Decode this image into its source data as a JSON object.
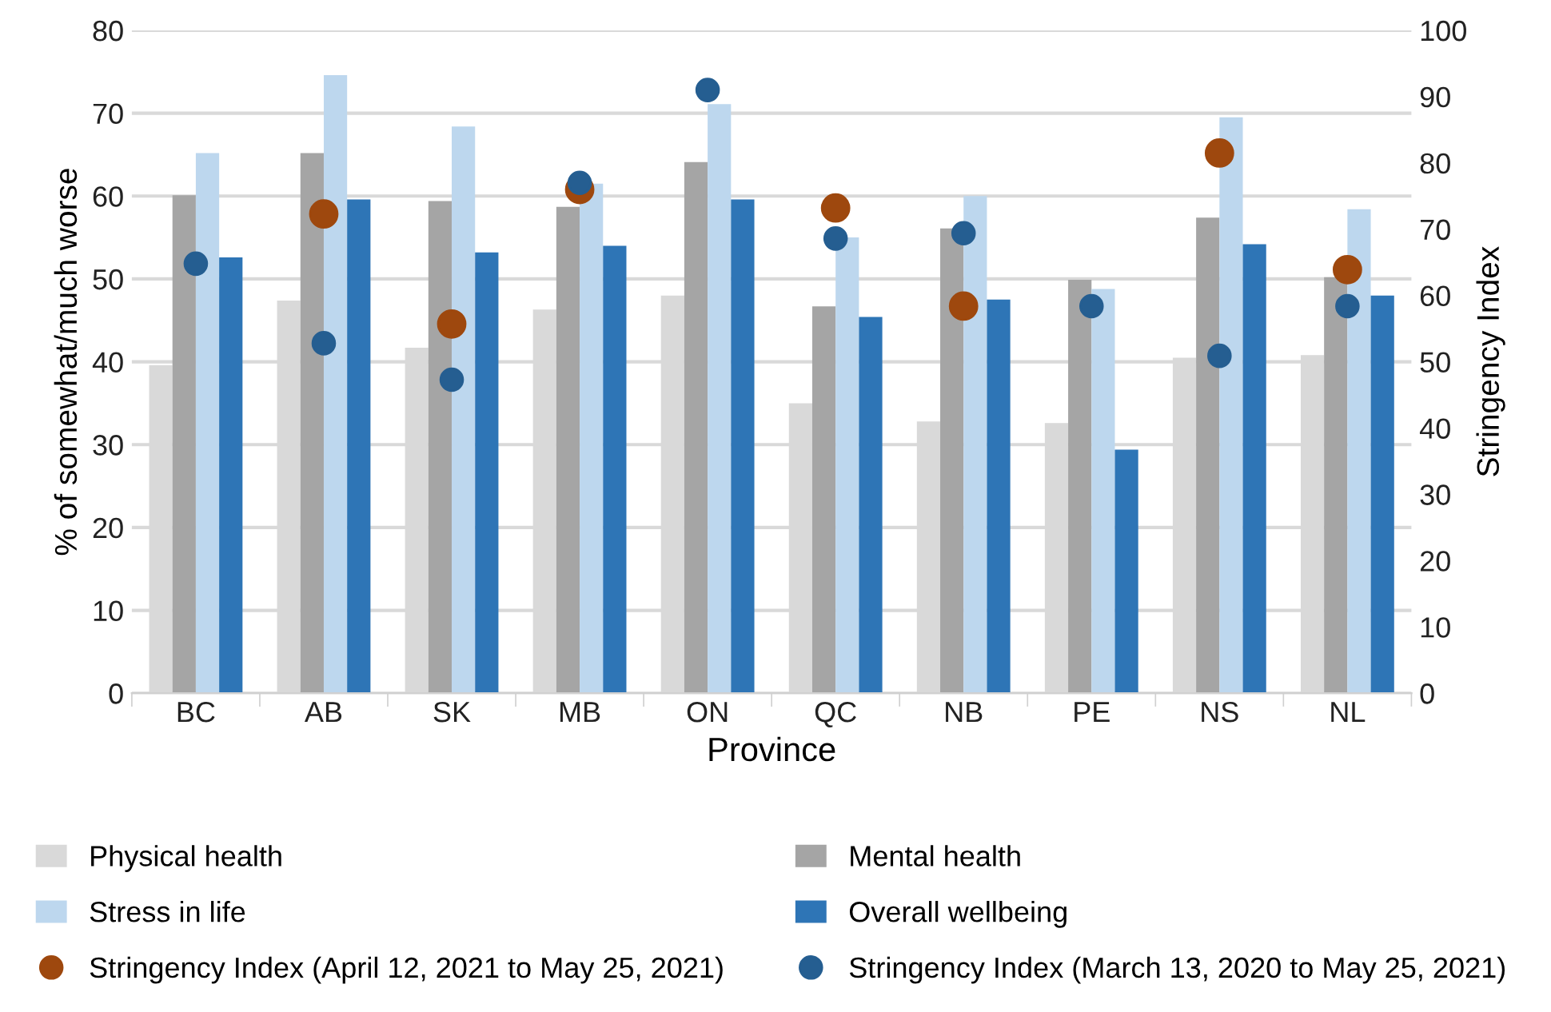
{
  "chart_data": {
    "type": "bar",
    "xlabel": "Province",
    "ylabel": "% of somewhat/much worse",
    "y2label": "Stringency Index",
    "categories": [
      "BC",
      "AB",
      "SK",
      "MB",
      "ON",
      "QC",
      "NB",
      "PE",
      "NS",
      "NL"
    ],
    "series": [
      {
        "name": "Physical health",
        "color": "#d9d9d9",
        "values": [
          39.6,
          47.4,
          41.7,
          46.3,
          48.0,
          35.0,
          32.8,
          32.6,
          40.5,
          40.8
        ]
      },
      {
        "name": "Mental health",
        "color": "#a5a5a5",
        "values": [
          60.1,
          65.2,
          59.4,
          58.7,
          64.1,
          46.7,
          56.1,
          49.9,
          57.4,
          50.2
        ]
      },
      {
        "name": "Stress in life",
        "color": "#bdd7ee",
        "values": [
          65.2,
          74.6,
          68.4,
          61.5,
          71.1,
          55.0,
          60.0,
          48.8,
          69.5,
          58.4
        ]
      },
      {
        "name": "Overall wellbeing",
        "color": "#2e75b6",
        "values": [
          52.6,
          59.6,
          53.2,
          54.0,
          59.6,
          45.4,
          47.5,
          29.4,
          54.2,
          48.0
        ]
      },
      {
        "name": "Stringency Index (April 12, 2021 to May 25, 2021)",
        "type": "scatter",
        "axis": "y2",
        "color": "#9e480e",
        "values": [
          null,
          72.3,
          55.7,
          76.0,
          null,
          73.2,
          58.4,
          null,
          81.5,
          63.9
        ]
      },
      {
        "name": "Stringency Index (March 13, 2020 to May 25, 2021)",
        "type": "scatter",
        "axis": "y2",
        "color": "#255e91",
        "values": [
          64.8,
          52.8,
          47.3,
          77.0,
          91.0,
          68.6,
          69.4,
          58.4,
          50.9,
          58.4
        ]
      }
    ],
    "ylim": [
      0,
      80
    ],
    "yticks": [
      0,
      10,
      20,
      30,
      40,
      50,
      60,
      70,
      80
    ],
    "y2lim": [
      0,
      100
    ],
    "y2ticks": [
      0,
      10,
      20,
      30,
      40,
      50,
      60,
      70,
      80,
      90,
      100
    ],
    "grid": "y",
    "legend": "bottom",
    "marker": "circle"
  }
}
